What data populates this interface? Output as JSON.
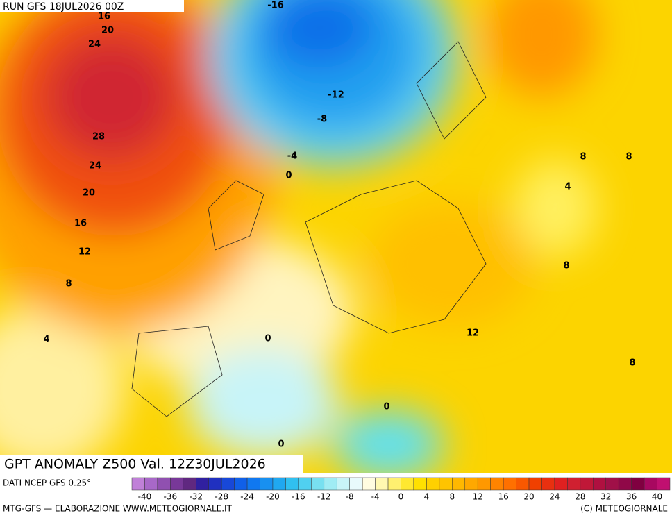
{
  "header": {
    "run": "RUN GFS 18JUL2026 00Z",
    "title": "GPT ANOMALY Z500 Val. 12Z30JUL2026"
  },
  "contour_labels": [
    "16",
    "20",
    "24",
    "28",
    "24",
    "20",
    "16",
    "12",
    "8",
    "4",
    "-16",
    "-12",
    "-8",
    "-4",
    "0",
    "8",
    "8",
    "4",
    "8",
    "12",
    "8",
    "0",
    "0",
    "0"
  ],
  "colorbar": {
    "source": "DATI NCEP GFS 0.25°",
    "colors": [
      "#c080d8",
      "#a868c8",
      "#9050b0",
      "#783898",
      "#602880",
      "#3020a0",
      "#2030c0",
      "#1848d8",
      "#1060e8",
      "#1078f0",
      "#1890f0",
      "#20a8f0",
      "#30c0f0",
      "#50d0f0",
      "#78e0f0",
      "#a0ecf4",
      "#c8f4f8",
      "#e8fafc",
      "#fffce0",
      "#fff8b0",
      "#fff070",
      "#ffe830",
      "#ffe000",
      "#ffd000",
      "#ffc400",
      "#ffb800",
      "#ffa800",
      "#ff9800",
      "#ff8400",
      "#ff7000",
      "#f85800",
      "#f04000",
      "#e83010",
      "#e02020",
      "#d02030",
      "#c01838",
      "#b01040",
      "#a01048",
      "#900848",
      "#800040",
      "#a80860",
      "#c01070"
    ],
    "ticks": [
      "-40",
      "-36",
      "-32",
      "-28",
      "-24",
      "-20",
      "-16",
      "-12",
      "-8",
      "-4",
      "0",
      "4",
      "8",
      "12",
      "16",
      "20",
      "24",
      "28",
      "32",
      "36",
      "40"
    ]
  },
  "footer": {
    "left": "MTG-GFS — ELABORAZIONE WWW.METEOGIORNALE.IT",
    "right": "(C) METEOGIORNALE"
  }
}
